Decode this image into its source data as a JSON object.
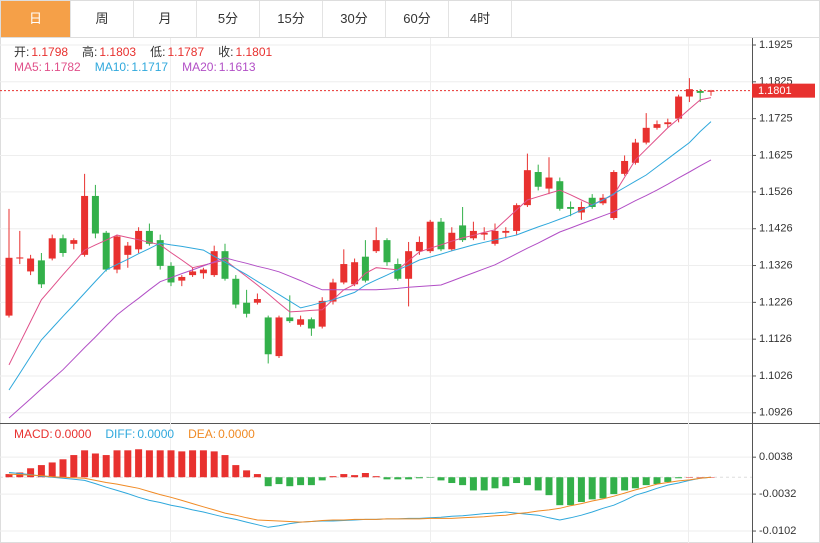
{
  "tabs": [
    "日",
    "周",
    "月",
    "5分",
    "15分",
    "30分",
    "60分",
    "4时"
  ],
  "active_tab": 0,
  "chart_data": [
    {
      "type": "candlestick",
      "readouts": [
        {
          "label": "开:",
          "value": 1.1798
        },
        {
          "label": "高:",
          "value": 1.1803
        },
        {
          "label": "低:",
          "value": 1.1787
        },
        {
          "label": "收:",
          "value": 1.1801
        }
      ],
      "ma_readouts": [
        {
          "label": "MA5:",
          "value": 1.1782
        },
        {
          "label": "MA10:",
          "value": 1.1717
        },
        {
          "label": "MA20:",
          "value": 1.1613
        }
      ],
      "open": [
        1.119,
        1.1345,
        1.131,
        1.134,
        1.1345,
        1.14,
        1.1385,
        1.1355,
        1.1515,
        1.1415,
        1.1315,
        1.1355,
        1.137,
        1.142,
        1.1395,
        1.1325,
        1.1285,
        1.13,
        1.1305,
        1.13,
        1.1365,
        1.129,
        1.1225,
        1.1225,
        1.1185,
        1.108,
        1.1185,
        1.1165,
        1.118,
        1.116,
        1.1228,
        1.128,
        1.1275,
        1.135,
        1.1365,
        1.1395,
        1.133,
        1.129,
        1.1365,
        1.1365,
        1.1445,
        1.137,
        1.1435,
        1.14,
        1.141,
        1.1385,
        1.1415,
        1.142,
        1.149,
        1.158,
        1.1535,
        1.1555,
        1.1485,
        1.147,
        1.151,
        1.1495,
        1.1455,
        1.1575,
        1.1605,
        1.166,
        1.17,
        1.171,
        1.1725,
        1.1785,
        1.18,
        1.1798
      ],
      "high": [
        1.148,
        1.142,
        1.1355,
        1.136,
        1.141,
        1.141,
        1.14,
        1.1575,
        1.1545,
        1.142,
        1.141,
        1.139,
        1.143,
        1.144,
        1.141,
        1.1335,
        1.13,
        1.132,
        1.132,
        1.138,
        1.1385,
        1.13,
        1.126,
        1.125,
        1.119,
        1.119,
        1.1245,
        1.119,
        1.1185,
        1.124,
        1.129,
        1.137,
        1.1345,
        1.1395,
        1.143,
        1.14,
        1.1345,
        1.139,
        1.1405,
        1.145,
        1.1455,
        1.143,
        1.1485,
        1.1445,
        1.143,
        1.144,
        1.143,
        1.1495,
        1.163,
        1.16,
        1.162,
        1.1565,
        1.15,
        1.15,
        1.152,
        1.152,
        1.1585,
        1.1625,
        1.167,
        1.174,
        1.172,
        1.1725,
        1.179,
        1.1835,
        1.1805,
        1.1803
      ],
      "low": [
        1.1185,
        1.133,
        1.13,
        1.1265,
        1.134,
        1.135,
        1.137,
        1.135,
        1.14,
        1.131,
        1.1305,
        1.132,
        1.136,
        1.138,
        1.1315,
        1.127,
        1.127,
        1.1295,
        1.129,
        1.1295,
        1.1285,
        1.121,
        1.1185,
        1.122,
        1.106,
        1.1075,
        1.117,
        1.116,
        1.1135,
        1.1155,
        1.122,
        1.1275,
        1.127,
        1.128,
        1.136,
        1.1325,
        1.1285,
        1.1215,
        1.1355,
        1.136,
        1.1365,
        1.1365,
        1.139,
        1.1395,
        1.1395,
        1.138,
        1.14,
        1.141,
        1.1485,
        1.153,
        1.152,
        1.1475,
        1.146,
        1.145,
        1.148,
        1.149,
        1.145,
        1.157,
        1.16,
        1.1655,
        1.1695,
        1.17,
        1.1715,
        1.177,
        1.177,
        1.1787
      ],
      "close": [
        1.1347,
        1.1348,
        1.1345,
        1.1275,
        1.14,
        1.136,
        1.1395,
        1.1515,
        1.1413,
        1.1315,
        1.1405,
        1.138,
        1.142,
        1.1385,
        1.1325,
        1.128,
        1.1295,
        1.131,
        1.1315,
        1.1365,
        1.129,
        1.122,
        1.1195,
        1.1235,
        1.1085,
        1.1185,
        1.1175,
        1.118,
        1.1155,
        1.123,
        1.128,
        1.133,
        1.1335,
        1.1285,
        1.1395,
        1.1335,
        1.129,
        1.1365,
        1.139,
        1.1445,
        1.137,
        1.1415,
        1.1395,
        1.142,
        1.1415,
        1.142,
        1.142,
        1.149,
        1.1585,
        1.154,
        1.1565,
        1.148,
        1.148,
        1.1485,
        1.1485,
        1.151,
        1.158,
        1.161,
        1.166,
        1.17,
        1.171,
        1.1715,
        1.1785,
        1.1805,
        1.1795,
        1.1801
      ],
      "up_color": "#e8312f",
      "down_color": "#33b04a",
      "series": [
        {
          "color": "#e0508a",
          "values": [
            1.1056,
            1.1115,
            1.1174,
            1.1233,
            1.1267,
            1.1301,
            1.1334,
            1.1368,
            1.1382,
            1.1395,
            1.1409,
            1.1402,
            1.1396,
            1.1389,
            1.1382,
            1.1361,
            1.1341,
            1.132,
            1.1327,
            1.1334,
            1.1341,
            1.1318,
            1.1296,
            1.1273,
            1.1249,
            1.1224,
            1.12,
            1.1202,
            1.1204,
            1.1206,
            1.1233,
            1.126,
            1.1275,
            1.1305,
            1.132,
            1.1317,
            1.1314,
            1.1339,
            1.1363,
            1.1373,
            1.1382,
            1.1392,
            1.1401,
            1.1408,
            1.1416,
            1.1423,
            1.145,
            1.1477,
            1.1504,
            1.1513,
            1.1522,
            1.1531,
            1.1518,
            1.1504,
            1.1491,
            1.1505,
            1.1518,
            1.1566,
            1.1613,
            1.1642,
            1.1671,
            1.17,
            1.1725,
            1.1751,
            1.1776,
            1.1782
          ]
        },
        {
          "color": "#2fa8dc",
          "values": [
            1.0988,
            1.1033,
            1.1079,
            1.1124,
            1.1156,
            1.1188,
            1.1219,
            1.1251,
            1.1283,
            1.1314,
            1.1329,
            1.1343,
            1.1358,
            1.1372,
            1.1387,
            1.1382,
            1.1378,
            1.1373,
            1.1368,
            1.1351,
            1.1335,
            1.1318,
            1.1301,
            1.1283,
            1.1265,
            1.1247,
            1.1229,
            1.1211,
            1.1218,
            1.1226,
            1.1233,
            1.1243,
            1.1253,
            1.1273,
            1.1287,
            1.13,
            1.1314,
            1.1327,
            1.1341,
            1.1349,
            1.1357,
            1.1366,
            1.1374,
            1.1382,
            1.1389,
            1.1396,
            1.1402,
            1.1409,
            1.142,
            1.1431,
            1.1441,
            1.1452,
            1.1463,
            1.1477,
            1.149,
            1.1504,
            1.1521,
            1.1538,
            1.1555,
            1.1572,
            1.1594,
            1.1616,
            1.1638,
            1.166,
            1.169,
            1.1717
          ]
        },
        {
          "color": "#b24fc6",
          "values": [
            1.0912,
            1.0938,
            1.0964,
            1.0991,
            1.1017,
            1.1043,
            1.1073,
            1.1103,
            1.1132,
            1.1162,
            1.1192,
            1.1215,
            1.1237,
            1.126,
            1.1282,
            1.1293,
            1.1304,
            1.1314,
            1.1325,
            1.1336,
            1.1347,
            1.1339,
            1.1332,
            1.1324,
            1.1317,
            1.1309,
            1.1297,
            1.1285,
            1.1272,
            1.126,
            1.126,
            1.126,
            1.126,
            1.126,
            1.126,
            1.1262,
            1.1264,
            1.1267,
            1.1269,
            1.1271,
            1.1273,
            1.1284,
            1.1295,
            1.1306,
            1.1317,
            1.1328,
            1.1343,
            1.1358,
            1.1373,
            1.1387,
            1.1402,
            1.1417,
            1.1428,
            1.1439,
            1.145,
            1.1461,
            1.1472,
            1.1487,
            1.1502,
            1.1516,
            1.1531,
            1.1547,
            1.1564,
            1.158,
            1.1597,
            1.1613
          ]
        }
      ],
      "ylim": [
        1.0901,
        1.1944
      ],
      "yticks": [
        1.1925,
        1.1825,
        1.1725,
        1.1625,
        1.1526,
        1.1426,
        1.1326,
        1.1226,
        1.1126,
        1.1026,
        1.0926
      ],
      "grid": true,
      "last_price": 1.1801,
      "last_price_color": "#e8312f"
    },
    {
      "type": "macd",
      "readouts": [
        {
          "label": "MACD:",
          "value": "0.0000",
          "color": "#e8312f"
        },
        {
          "label": "DIFF:",
          "value": "0.0000",
          "color": "#2fa8dc"
        },
        {
          "label": "DEA:",
          "value": "0.0000",
          "color": "#f08a24"
        }
      ],
      "values": [
        0.0006,
        0.0009,
        0.0017,
        0.0023,
        0.0028,
        0.0034,
        0.0042,
        0.0051,
        0.0045,
        0.0042,
        0.0051,
        0.0051,
        0.0053,
        0.0051,
        0.0051,
        0.0051,
        0.0049,
        0.0051,
        0.0051,
        0.0049,
        0.0042,
        0.0023,
        0.0013,
        0.0006,
        -0.0017,
        -0.0013,
        -0.0017,
        -0.0015,
        -0.0015,
        -0.0006,
        0.0002,
        0.0006,
        0.0004,
        0.0008,
        0.0002,
        -0.0004,
        -0.0004,
        -0.0004,
        -0.0002,
        -0.0001,
        -0.0006,
        -0.0011,
        -0.0015,
        -0.0025,
        -0.0025,
        -0.0021,
        -0.0017,
        -0.0011,
        -0.0015,
        -0.0025,
        -0.0034,
        -0.0053,
        -0.0053,
        -0.0047,
        -0.0042,
        -0.004,
        -0.0032,
        -0.0025,
        -0.0021,
        -0.0015,
        -0.0013,
        -0.0009,
        -0.0002,
        0,
        0,
        0
      ],
      "up_color": "#e8312f",
      "down_color": "#33b04a",
      "series": [
        {
          "color": "#2fa8dc",
          "values": [
            0.0009,
            0.0007,
            0.0005,
            0.0002,
            0,
            -0.0002,
            -0.0004,
            -0.0006,
            -0.0012,
            -0.0019,
            -0.0025,
            -0.0031,
            -0.0038,
            -0.0044,
            -0.0048,
            -0.0053,
            -0.0057,
            -0.0062,
            -0.0066,
            -0.0071,
            -0.0076,
            -0.008,
            -0.0085,
            -0.009,
            -0.0095,
            -0.0092,
            -0.0088,
            -0.0085,
            -0.0084,
            -0.0083,
            -0.0083,
            -0.0082,
            -0.0081,
            -0.008,
            -0.008,
            -0.0079,
            -0.0079,
            -0.0078,
            -0.0078,
            -0.0077,
            -0.0076,
            -0.0074,
            -0.0073,
            -0.0071,
            -0.0069,
            -0.0068,
            -0.0066,
            -0.0068,
            -0.007,
            -0.0072,
            -0.0077,
            -0.0081,
            -0.0077,
            -0.0072,
            -0.0066,
            -0.0059,
            -0.0053,
            -0.0044,
            -0.0034,
            -0.0028,
            -0.0021,
            -0.0015,
            -0.0011,
            -0.0006,
            -0.0002,
            0
          ]
        },
        {
          "color": "#f08a24",
          "values": [
            0.0006,
            0.0005,
            0.0004,
            0.0003,
            0.0001,
            0,
            -0.0001,
            -0.0002,
            -0.0006,
            -0.001,
            -0.0013,
            -0.0017,
            -0.0021,
            -0.0027,
            -0.0033,
            -0.0038,
            -0.0044,
            -0.005,
            -0.0056,
            -0.0062,
            -0.0068,
            -0.0072,
            -0.0077,
            -0.0081,
            -0.0082,
            -0.0083,
            -0.0084,
            -0.0085,
            -0.0084,
            -0.0082,
            -0.0081,
            -0.0081,
            -0.008,
            -0.008,
            -0.008,
            -0.0079,
            -0.0079,
            -0.0079,
            -0.0079,
            -0.0078,
            -0.0078,
            -0.0078,
            -0.0077,
            -0.0076,
            -0.0075,
            -0.0073,
            -0.0072,
            -0.0069,
            -0.0067,
            -0.0064,
            -0.0062,
            -0.0059,
            -0.0054,
            -0.005,
            -0.0045,
            -0.0041,
            -0.0036,
            -0.003,
            -0.0024,
            -0.0019,
            -0.0013,
            -0.001,
            -0.0007,
            -0.0005,
            -0.0002,
            0
          ]
        }
      ],
      "ylim": [
        -0.0119,
        0.0099
      ],
      "yticks": [
        0.0038,
        -0.0032,
        -0.0102
      ],
      "grid": true
    }
  ]
}
